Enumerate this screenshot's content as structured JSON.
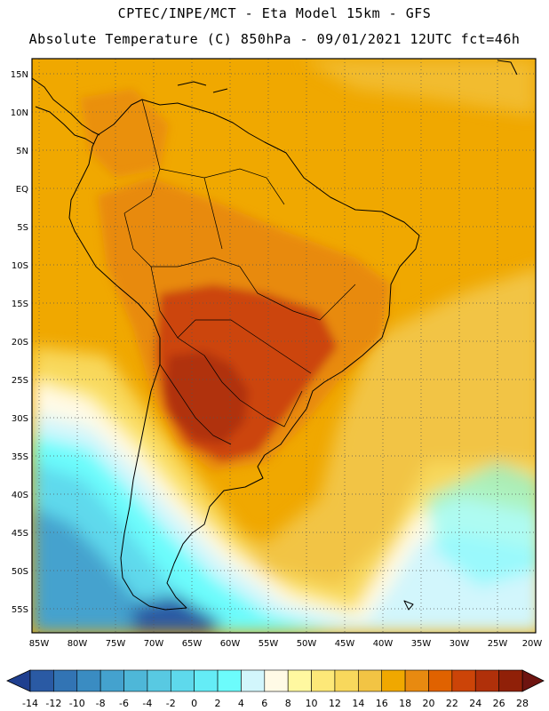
{
  "header": {
    "line1": "CPTEC/INPE/MCT -  Eta Model 15km - GFS",
    "line2": "Absolute Temperature (C) 850hPa - 09/01/2021 12UTC fct=46h"
  },
  "latitude_labels": [
    "15N",
    "10N",
    "5N",
    "EQ",
    "5S",
    "10S",
    "15S",
    "20S",
    "25S",
    "30S",
    "35S",
    "40S",
    "45S",
    "50S",
    "55S"
  ],
  "longitude_labels": [
    "85W",
    "80W",
    "75W",
    "70W",
    "65W",
    "60W",
    "55W",
    "50W",
    "45W",
    "40W",
    "35W",
    "30W",
    "25W",
    "20W"
  ],
  "colorbar": {
    "labels": [
      "-14",
      "-12",
      "-10",
      "-8",
      "-6",
      "-4",
      "-2",
      "0",
      "2",
      "4",
      "6",
      "8",
      "10",
      "12",
      "14",
      "16",
      "18",
      "20",
      "22",
      "24",
      "26",
      "28"
    ],
    "colors": [
      "#1f3f8f",
      "#2a5aa4",
      "#3274b4",
      "#3a8cc2",
      "#44a2ce",
      "#4eb7d8",
      "#58c9e2",
      "#5ed9ec",
      "#64ecf6",
      "#6cfcfc",
      "#d2f6fc",
      "#fffae6",
      "#fff8a0",
      "#fde878",
      "#f8d85c",
      "#f2c444",
      "#f0a800",
      "#e88a10",
      "#e06200",
      "#cc4408",
      "#b0300a",
      "#902008",
      "#6e1410"
    ]
  },
  "temperature_colors": {
    "very_hot": "#b0300a",
    "hot": "#cc4408",
    "warm_orange": "#e88a10",
    "amber": "#f0a800",
    "yellow_orange": "#f2c444",
    "yellow": "#f8d85c",
    "pale_yellow": "#fde878",
    "cream": "#fffae6",
    "pale_cyan": "#d2f6fc",
    "cyan": "#6cfcfc",
    "light_blue": "#5ed9ec",
    "blue": "#44a2ce",
    "deep_blue": "#2a5aa4"
  }
}
